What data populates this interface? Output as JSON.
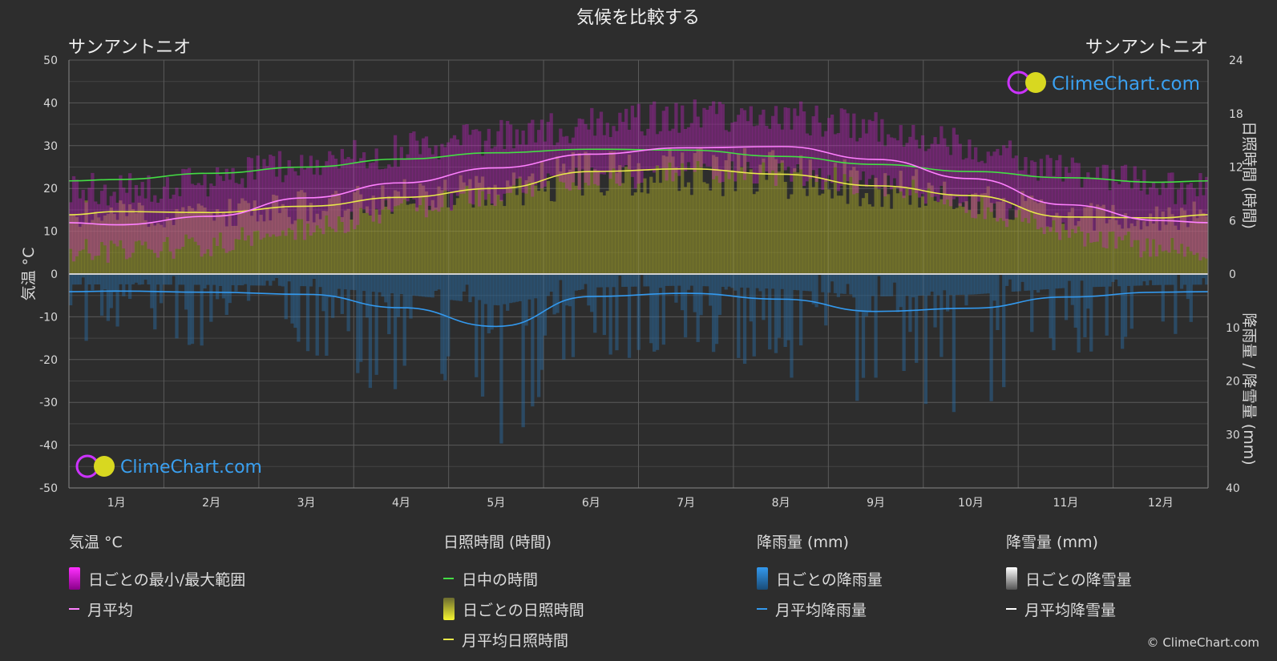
{
  "title": "気候を比較する",
  "location_left": "サンアントニオ",
  "location_right": "サンアントニオ",
  "watermark": "ClimeChart.com",
  "copyright": "© ClimeChart.com",
  "colors": {
    "background": "#2d2d2d",
    "daylight": "#44dd44",
    "sunshine": "#e8e84a",
    "temp_avg": "#ff80ff",
    "temp_range": "#e000e0",
    "rain": "#3399ee",
    "snow": "#ffffff"
  },
  "chart_data": {
    "type": "line",
    "title": "気候を比較する",
    "categories": [
      "1月",
      "2月",
      "3月",
      "4月",
      "5月",
      "6月",
      "7月",
      "8月",
      "9月",
      "10月",
      "11月",
      "12月"
    ],
    "left_axis": {
      "label": "気温 °C",
      "min": -50,
      "max": 50,
      "ticks": [
        50,
        40,
        30,
        20,
        10,
        0,
        -10,
        -20,
        -30,
        -40,
        -50
      ]
    },
    "right_axis_top": {
      "label": "日照時間 (時間)",
      "min": 0,
      "max": 24,
      "ticks": [
        24,
        18,
        12,
        6,
        0
      ]
    },
    "right_axis_bottom": {
      "label": "降雨量 / 降雪量 (mm)",
      "min": 0,
      "max": 40,
      "ticks": [
        0,
        10,
        20,
        30,
        40
      ]
    },
    "series": [
      {
        "name": "日中の時間",
        "unit": "hours",
        "values": [
          10.6,
          11.3,
          12.0,
          12.9,
          13.6,
          14.0,
          13.9,
          13.2,
          12.3,
          11.5,
          10.8,
          10.3
        ]
      },
      {
        "name": "月平均日照時間",
        "unit": "hours",
        "values": [
          7.0,
          6.9,
          7.6,
          8.6,
          9.6,
          11.5,
          11.8,
          11.2,
          9.9,
          8.8,
          6.4,
          6.3
        ]
      },
      {
        "name": "月平均",
        "unit": "°C",
        "values": [
          11.5,
          13.5,
          17.8,
          21.3,
          24.8,
          28.0,
          29.5,
          29.8,
          26.8,
          22.3,
          16.2,
          12.5
        ]
      },
      {
        "name": "日ごとの最小/最大範囲 (最小)",
        "unit": "°C",
        "values": [
          5,
          7,
          11,
          15,
          19,
          22.5,
          23.5,
          23.5,
          21,
          16,
          10,
          6
        ]
      },
      {
        "name": "日ごとの最小/最大範囲 (最大)",
        "unit": "°C",
        "values": [
          18,
          20.5,
          24.5,
          27.5,
          30.5,
          33.5,
          35.5,
          35.5,
          32.5,
          28,
          22.5,
          18.5
        ]
      },
      {
        "name": "月平均降雨量",
        "unit": "mm",
        "values": [
          3.2,
          3.4,
          3.8,
          6.3,
          9.8,
          4.2,
          3.6,
          4.7,
          7.0,
          6.4,
          4.3,
          3.4
        ]
      },
      {
        "name": "月平均降雪量",
        "unit": "mm",
        "values": [
          0,
          0,
          0,
          0,
          0,
          0,
          0,
          0,
          0,
          0,
          0,
          0
        ]
      }
    ],
    "grid": true
  },
  "legend": {
    "groups": [
      {
        "header": "気温 °C",
        "items": [
          "日ごとの最小/最大範囲",
          "月平均"
        ]
      },
      {
        "header": "日照時間 (時間)",
        "items": [
          "日中の時間",
          "日ごとの日照時間",
          "月平均日照時間"
        ]
      },
      {
        "header": "降雨量 (mm)",
        "items": [
          "日ごとの降雨量",
          "月平均降雨量"
        ]
      },
      {
        "header": "降雪量 (mm)",
        "items": [
          "日ごとの降雪量",
          "月平均降雪量"
        ]
      }
    ]
  }
}
